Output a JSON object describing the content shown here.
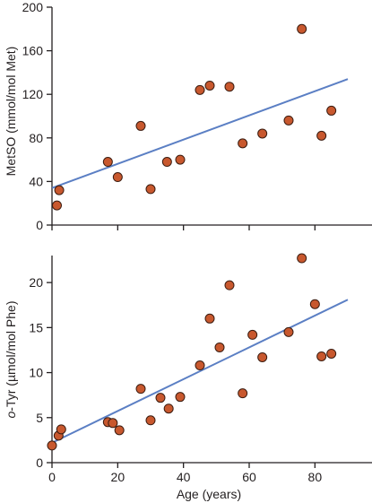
{
  "chart_data": [
    {
      "type": "scatter",
      "title": "",
      "xlabel": "",
      "ylabel": "MetSO (mmol/mol Met)",
      "xlim": [
        0,
        90
      ],
      "ylim": [
        0,
        200
      ],
      "xticks": [
        0,
        20,
        40,
        60,
        80
      ],
      "yticks": [
        0,
        40,
        80,
        120,
        160,
        200
      ],
      "ytick_labels": [
        "0",
        "40",
        "80",
        "120",
        "160",
        "200"
      ],
      "grid": false,
      "colors": {
        "marker_fill": "#c8582e",
        "marker_stroke": "#3b1c10",
        "trend_line": "#5b7fc4"
      },
      "points": [
        {
          "x": 1.5,
          "y": 18
        },
        {
          "x": 2.2,
          "y": 32
        },
        {
          "x": 17,
          "y": 58
        },
        {
          "x": 20,
          "y": 44
        },
        {
          "x": 27,
          "y": 91
        },
        {
          "x": 30,
          "y": 33
        },
        {
          "x": 35,
          "y": 58
        },
        {
          "x": 39,
          "y": 60
        },
        {
          "x": 45,
          "y": 124
        },
        {
          "x": 48,
          "y": 128
        },
        {
          "x": 54,
          "y": 127
        },
        {
          "x": 58,
          "y": 75
        },
        {
          "x": 64,
          "y": 84
        },
        {
          "x": 72,
          "y": 96
        },
        {
          "x": 76,
          "y": 180
        },
        {
          "x": 82,
          "y": 82
        },
        {
          "x": 85,
          "y": 105
        }
      ],
      "trend_line": {
        "x": [
          0,
          90
        ],
        "y": [
          34,
          134
        ]
      }
    },
    {
      "type": "scatter",
      "title": "",
      "xlabel": "Age (years)",
      "ylabel_parts": [
        "o",
        "-Tyr (µmol/mol Phe)"
      ],
      "xlim": [
        0,
        90
      ],
      "ylim": [
        0,
        23
      ],
      "xticks": [
        0,
        20,
        40,
        60,
        80
      ],
      "xtick_labels": [
        "0",
        "20",
        "40",
        "60",
        "80"
      ],
      "yticks": [
        0,
        5,
        10,
        15,
        20
      ],
      "ytick_labels": [
        "0",
        "5",
        "10",
        "15",
        "20"
      ],
      "grid": false,
      "colors": {
        "marker_fill": "#c8582e",
        "marker_stroke": "#3b1c10",
        "trend_line": "#5b7fc4"
      },
      "points": [
        {
          "x": 0,
          "y": 1.9
        },
        {
          "x": 2.0,
          "y": 3.0
        },
        {
          "x": 2.8,
          "y": 3.7
        },
        {
          "x": 17,
          "y": 4.5
        },
        {
          "x": 18.5,
          "y": 4.4
        },
        {
          "x": 20.5,
          "y": 3.6
        },
        {
          "x": 27,
          "y": 8.2
        },
        {
          "x": 30,
          "y": 4.7
        },
        {
          "x": 33,
          "y": 7.2
        },
        {
          "x": 35.5,
          "y": 6.0
        },
        {
          "x": 39,
          "y": 7.3
        },
        {
          "x": 45,
          "y": 10.8
        },
        {
          "x": 48,
          "y": 16.0
        },
        {
          "x": 51,
          "y": 12.8
        },
        {
          "x": 54,
          "y": 19.7
        },
        {
          "x": 58,
          "y": 7.7
        },
        {
          "x": 61,
          "y": 14.2
        },
        {
          "x": 64,
          "y": 11.7
        },
        {
          "x": 72,
          "y": 14.5
        },
        {
          "x": 76,
          "y": 22.7
        },
        {
          "x": 80,
          "y": 17.6
        },
        {
          "x": 82,
          "y": 11.8
        },
        {
          "x": 85,
          "y": 12.1
        }
      ],
      "trend_line": {
        "x": [
          0,
          90
        ],
        "y": [
          2.2,
          18.1
        ]
      }
    }
  ]
}
